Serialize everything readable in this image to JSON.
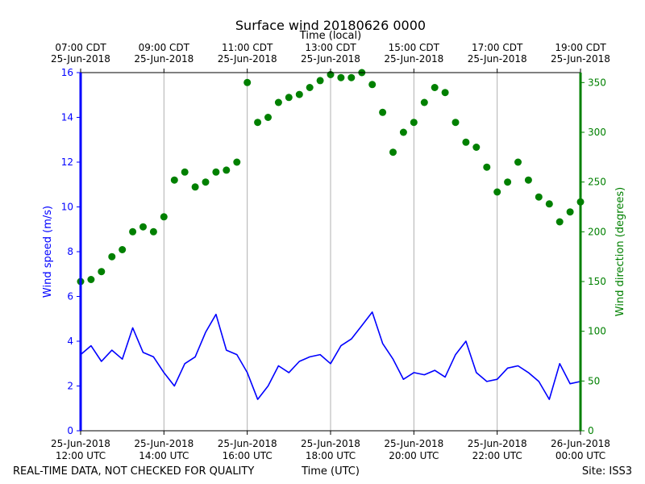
{
  "chart_data": {
    "type": "line",
    "title": "Surface wind 20180626 0000",
    "top_axis_label": "Time (local)",
    "bottom_axis_label": "Time (UTC)",
    "footer_left": "REAL-TIME DATA, NOT CHECKED FOR QUALITY",
    "footer_right": "Site: ISS3",
    "y_left": {
      "label": "Wind speed (m/s)",
      "range": [
        0,
        16
      ],
      "ticks": [
        "0",
        "2",
        "4",
        "6",
        "8",
        "10",
        "12",
        "14",
        "16"
      ],
      "color": "#0000ff"
    },
    "y_right": {
      "label": "Wind direction (degrees)",
      "range": [
        0,
        360
      ],
      "ticks": [
        "0",
        "50",
        "100",
        "150",
        "200",
        "250",
        "300",
        "350"
      ],
      "color": "#008000"
    },
    "x_range_hours_utc": [
      12,
      24
    ],
    "x_ticks_utc": [
      {
        "line1": "25-Jun-2018",
        "line2": "12:00 UTC"
      },
      {
        "line1": "25-Jun-2018",
        "line2": "14:00 UTC"
      },
      {
        "line1": "25-Jun-2018",
        "line2": "16:00 UTC"
      },
      {
        "line1": "25-Jun-2018",
        "line2": "18:00 UTC"
      },
      {
        "line1": "25-Jun-2018",
        "line2": "20:00 UTC"
      },
      {
        "line1": "25-Jun-2018",
        "line2": "22:00 UTC"
      },
      {
        "line1": "26-Jun-2018",
        "line2": "00:00 UTC"
      }
    ],
    "x_ticks_local": [
      {
        "line1": "07:00 CDT",
        "line2": "25-Jun-2018"
      },
      {
        "line1": "09:00 CDT",
        "line2": "25-Jun-2018"
      },
      {
        "line1": "11:00 CDT",
        "line2": "25-Jun-2018"
      },
      {
        "line1": "13:00 CDT",
        "line2": "25-Jun-2018"
      },
      {
        "line1": "15:00 CDT",
        "line2": "25-Jun-2018"
      },
      {
        "line1": "17:00 CDT",
        "line2": "25-Jun-2018"
      },
      {
        "line1": "19:00 CDT",
        "line2": "25-Jun-2018"
      }
    ],
    "grid_vertical": true,
    "series": [
      {
        "name": "Wind speed",
        "axis": "left",
        "color": "#0000ff",
        "style": "line",
        "x_hours_utc": [
          12.0,
          12.25,
          12.5,
          12.75,
          13.0,
          13.25,
          13.5,
          13.75,
          14.0,
          14.25,
          14.5,
          14.75,
          15.0,
          15.25,
          15.5,
          15.75,
          16.0,
          16.25,
          16.5,
          16.75,
          17.0,
          17.25,
          17.5,
          17.75,
          18.0,
          18.25,
          18.5,
          18.75,
          19.0,
          19.25,
          19.5,
          19.75,
          20.0,
          20.25,
          20.5,
          20.75,
          21.0,
          21.25,
          21.5,
          21.75,
          22.0,
          22.25,
          22.5,
          22.75,
          23.0,
          23.25,
          23.5,
          23.75,
          24.0
        ],
        "values": [
          3.4,
          3.8,
          3.1,
          3.6,
          3.2,
          4.6,
          3.5,
          3.3,
          2.6,
          2.0,
          3.0,
          3.3,
          4.4,
          5.2,
          3.6,
          3.4,
          2.6,
          1.4,
          2.0,
          2.9,
          2.6,
          3.1,
          3.3,
          3.4,
          3.0,
          3.8,
          4.1,
          4.7,
          5.3,
          3.9,
          3.2,
          2.3,
          2.6,
          2.5,
          2.7,
          2.4,
          3.4,
          4.0,
          2.6,
          2.2,
          2.3,
          2.8,
          2.9,
          2.6,
          2.2,
          1.4,
          3.0,
          2.1,
          2.2
        ]
      },
      {
        "name": "Wind direction",
        "axis": "right",
        "color": "#008000",
        "style": "markers",
        "x_hours_utc": [
          12.0,
          12.25,
          12.5,
          12.75,
          13.0,
          13.25,
          13.5,
          13.75,
          14.0,
          14.25,
          14.5,
          14.75,
          15.0,
          15.25,
          15.5,
          15.75,
          16.0,
          16.25,
          16.5,
          16.75,
          17.0,
          17.25,
          17.5,
          17.75,
          18.0,
          18.25,
          18.5,
          18.75,
          19.0,
          19.25,
          19.5,
          19.75,
          20.0,
          20.25,
          20.5,
          20.75,
          21.0,
          21.25,
          21.5,
          21.75,
          22.0,
          22.25,
          22.5,
          22.75,
          23.0,
          23.25,
          23.5,
          23.75,
          24.0
        ],
        "values": [
          150,
          152,
          160,
          175,
          182,
          200,
          205,
          200,
          215,
          252,
          260,
          245,
          250,
          260,
          262,
          270,
          350,
          310,
          315,
          330,
          335,
          338,
          345,
          352,
          358,
          355,
          355,
          360,
          348,
          320,
          280,
          300,
          310,
          330,
          345,
          340,
          310,
          290,
          285,
          265,
          240,
          250,
          270,
          252,
          235,
          228,
          210,
          220,
          230
        ]
      }
    ]
  }
}
